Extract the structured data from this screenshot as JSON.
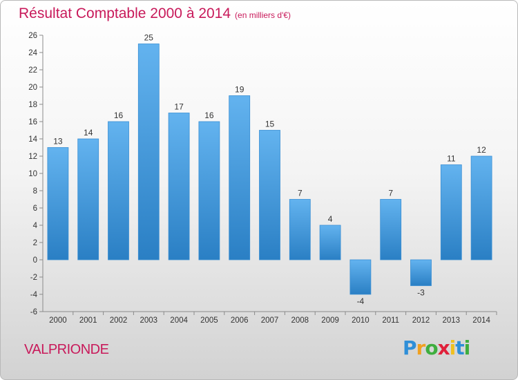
{
  "title": "Résultat Comptable 2000 à 2014",
  "subtitle": "(en milliers d'€)",
  "commune": "VALPRIONDE",
  "logo": {
    "letters": [
      "P",
      "r",
      "o",
      "x",
      "i",
      "t",
      "i"
    ],
    "colors": [
      "#2f8fd8",
      "#f0a020",
      "#3fae3f",
      "#e0203a",
      "#f0c020",
      "#2f8fd8",
      "#3fae3f"
    ]
  },
  "colors": {
    "bar_top": "#63b3ef",
    "bar_bottom": "#2a7fc4",
    "title": "#c8195a"
  },
  "chart_data": {
    "type": "bar",
    "categories": [
      "2000",
      "2001",
      "2002",
      "2003",
      "2004",
      "2005",
      "2006",
      "2007",
      "2008",
      "2009",
      "2010",
      "2011",
      "2012",
      "2013",
      "2014"
    ],
    "values": [
      13,
      14,
      16,
      25,
      17,
      16,
      19,
      15,
      7,
      4,
      -4,
      7,
      -3,
      11,
      12
    ],
    "value_labels": [
      "13",
      "14",
      "16",
      "25",
      "17",
      "16",
      "19",
      "15",
      "7",
      "4",
      "-4",
      "7",
      "-3",
      "11",
      "12"
    ],
    "yticks": [
      "-6",
      "-4",
      "-2",
      "0",
      "2",
      "4",
      "6",
      "8",
      "10",
      "12",
      "14",
      "16",
      "18",
      "20",
      "22",
      "24",
      "26"
    ],
    "ylim": [
      -6,
      26
    ],
    "ytick_step": 2,
    "grid": false
  }
}
